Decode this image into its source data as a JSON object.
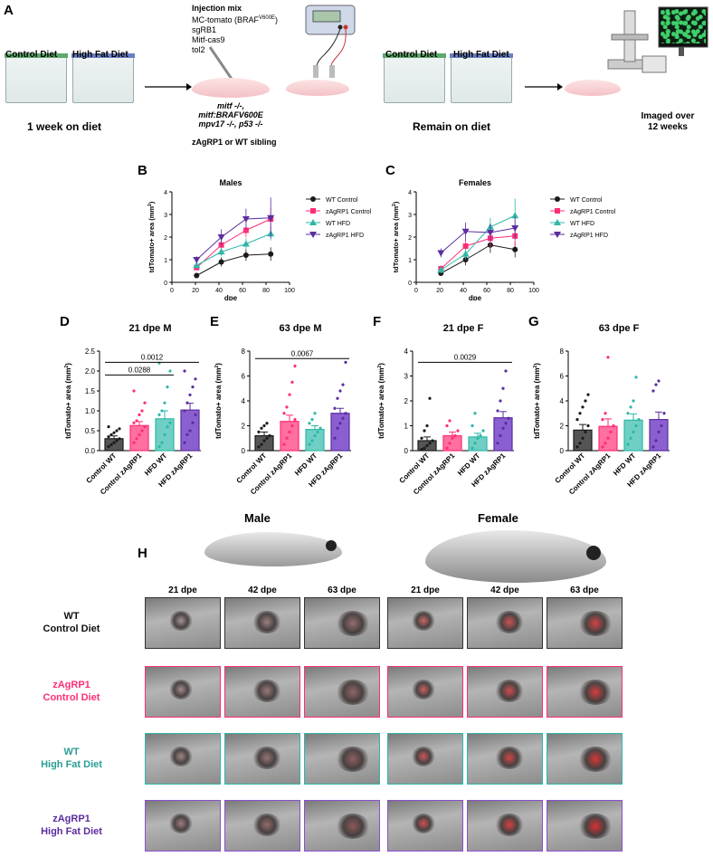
{
  "panel_labels": {
    "A": "A",
    "B": "B",
    "C": "C",
    "D": "D",
    "E": "E",
    "F": "F",
    "G": "G",
    "H": "H"
  },
  "panelA": {
    "control_diet": "Control Diet",
    "high_fat_diet": "High Fat Diet",
    "week_on_diet": "1 week on diet",
    "injection_title": "Injection mix",
    "injection_items": [
      "MC-tomato (BRAF",
      "sgRB1",
      "Mitf-cas9",
      "tol2"
    ],
    "braf_superscript": "V600E",
    "braf_close": ")",
    "genotype_lines": [
      "mitf -/-,",
      "mitf:BRAFV600E",
      "mpv17 -/-, p53 -/-"
    ],
    "sibling_text": "zAgRP1 or WT sibling",
    "remain_on_diet": "Remain on diet",
    "imaged_text": [
      "Imaged over",
      "12 weeks"
    ]
  },
  "colors": {
    "wt_control": "#1a1a1a",
    "zagrp1_control": "#ff2d78",
    "wt_hfd": "#2fb7a8",
    "zagrp1_hfd": "#5b2d9e"
  },
  "chart_data": [
    {
      "id": "B",
      "type": "line",
      "title": "Males",
      "xlabel": "dpe",
      "ylabel": "tdTomato+ area (mm",
      "ylabel_sup": "2",
      "ylabel_close": ")",
      "xlim": [
        0,
        100
      ],
      "ylim": [
        0,
        4
      ],
      "xticks": [
        0,
        20,
        40,
        60,
        80,
        100
      ],
      "yticks": [
        0,
        1,
        2,
        3,
        4
      ],
      "x": [
        21,
        42,
        63,
        84
      ],
      "series": [
        {
          "name": "WT Control",
          "color": "#1a1a1a",
          "marker": "circle",
          "values": [
            0.3,
            0.9,
            1.2,
            1.25
          ],
          "err": [
            0.05,
            0.2,
            0.25,
            0.3
          ]
        },
        {
          "name": "zAgRP1 Control",
          "color": "#ff2d78",
          "marker": "square",
          "values": [
            0.65,
            1.65,
            2.3,
            2.8
          ],
          "err": [
            0.1,
            0.25,
            0.3,
            0.5
          ]
        },
        {
          "name": "WT HFD",
          "color": "#2fb7a8",
          "marker": "triangle",
          "values": [
            0.75,
            1.35,
            1.7,
            2.15
          ],
          "err": [
            0.15,
            0.2,
            0.25,
            0.3
          ]
        },
        {
          "name": "zAgRP1 HFD",
          "color": "#5b2d9e",
          "marker": "triangle-down",
          "values": [
            1.0,
            2.0,
            2.8,
            2.85
          ],
          "err": [
            0.15,
            0.35,
            0.45,
            0.9
          ]
        }
      ]
    },
    {
      "id": "C",
      "type": "line",
      "title": "Females",
      "xlabel": "dpe",
      "ylabel": "tdTomato+ area (mm",
      "ylabel_sup": "2",
      "ylabel_close": ")",
      "xlim": [
        0,
        100
      ],
      "ylim": [
        0,
        4
      ],
      "xticks": [
        0,
        20,
        40,
        60,
        80,
        100
      ],
      "yticks": [
        0,
        1,
        2,
        3,
        4
      ],
      "x": [
        21,
        42,
        63,
        84
      ],
      "series": [
        {
          "name": "WT Control",
          "color": "#1a1a1a",
          "marker": "circle",
          "values": [
            0.4,
            1.0,
            1.65,
            1.45
          ],
          "err": [
            0.1,
            0.25,
            0.35,
            0.35
          ]
        },
        {
          "name": "zAgRP1 Control",
          "color": "#ff2d78",
          "marker": "square",
          "values": [
            0.6,
            1.6,
            1.95,
            2.05
          ],
          "err": [
            0.15,
            0.3,
            0.4,
            0.45
          ]
        },
        {
          "name": "WT HFD",
          "color": "#2fb7a8",
          "marker": "triangle",
          "values": [
            0.55,
            1.25,
            2.45,
            2.95
          ],
          "err": [
            0.15,
            0.25,
            0.4,
            0.75
          ]
        },
        {
          "name": "zAgRP1 HFD",
          "color": "#5b2d9e",
          "marker": "triangle-down",
          "values": [
            1.3,
            2.25,
            2.2,
            2.4
          ],
          "err": [
            0.2,
            0.4,
            0.4,
            0.5
          ]
        }
      ]
    },
    {
      "id": "D",
      "type": "bar",
      "title": "21 dpe M",
      "ylabel": "tdTomato+ area (mm",
      "ylabel_sup": "2",
      "ylabel_close": ")",
      "categories": [
        "Control WT",
        "Control zAgRP1",
        "HFD WT",
        "HFD zAgRP1"
      ],
      "values": [
        0.3,
        0.63,
        0.8,
        1.02
      ],
      "err": [
        0.07,
        0.1,
        0.2,
        0.17
      ],
      "ylim": [
        0,
        2.5
      ],
      "yticks": [
        0.0,
        0.5,
        1.0,
        1.5,
        2.0,
        2.5
      ],
      "ytick_labels": [
        "0.0",
        "0.5",
        "1.0",
        "1.5",
        "2.0",
        "2.5"
      ],
      "points": [
        [
          0.1,
          0.15,
          0.2,
          0.25,
          0.3,
          0.35,
          0.4,
          0.45,
          0.5,
          0.55,
          0.6
        ],
        [
          0.2,
          0.3,
          0.4,
          0.5,
          0.6,
          0.7,
          0.75,
          0.9,
          1.0,
          1.2,
          1.5
        ],
        [
          0.1,
          0.2,
          0.4,
          0.6,
          0.7,
          0.9,
          1.0,
          1.2,
          1.6,
          2.0,
          2.2
        ],
        [
          0.2,
          0.4,
          0.5,
          0.7,
          0.9,
          1.0,
          1.2,
          1.4,
          1.6,
          1.8,
          2.0
        ]
      ],
      "comparisons": [
        {
          "from": 0,
          "to": 3,
          "label": "0.0012",
          "y": 2.22
        },
        {
          "from": 0,
          "to": 2,
          "label": "0.0288",
          "y": 1.9
        }
      ]
    },
    {
      "id": "E",
      "type": "bar",
      "title": "63 dpe M",
      "ylabel": "tdTomato+ area (mm",
      "ylabel_sup": "2",
      "ylabel_close": ")",
      "categories": [
        "Control WT",
        "Control zAgRP1",
        "HFD WT",
        "HFD zAgRP1"
      ],
      "values": [
        1.2,
        2.35,
        1.7,
        3.0
      ],
      "err": [
        0.3,
        0.5,
        0.3,
        0.4
      ],
      "ylim": [
        0,
        8
      ],
      "yticks": [
        0,
        2,
        4,
        6,
        8
      ],
      "ytick_labels": [
        "0",
        "2",
        "4",
        "6",
        "8"
      ],
      "points": [
        [
          0.3,
          0.5,
          0.8,
          1.0,
          1.2,
          1.5,
          1.8,
          2.0,
          2.2
        ],
        [
          0.5,
          1.0,
          1.5,
          2.0,
          2.5,
          3.0,
          3.5,
          4.5,
          5.5,
          6.8
        ],
        [
          0.5,
          0.8,
          1.2,
          1.5,
          1.8,
          2.2,
          2.5,
          3.0
        ],
        [
          1.0,
          1.8,
          2.2,
          2.6,
          3.0,
          3.4,
          4.2,
          4.8,
          5.3,
          7.1
        ]
      ],
      "comparisons": [
        {
          "from": 0,
          "to": 3,
          "label": "0.0067",
          "y": 7.4
        }
      ]
    },
    {
      "id": "F",
      "type": "bar",
      "title": "21 dpe F",
      "ylabel": "tdTomato+ area (mm",
      "ylabel_sup": "2",
      "ylabel_close": ")",
      "categories": [
        "Control WT",
        "Control zAgRP1",
        "HFD WT",
        "HFD zAgRP1"
      ],
      "values": [
        0.4,
        0.6,
        0.55,
        1.32
      ],
      "err": [
        0.15,
        0.15,
        0.15,
        0.25
      ],
      "ylim": [
        0,
        4
      ],
      "yticks": [
        0,
        1,
        2,
        3,
        4
      ],
      "ytick_labels": [
        "0",
        "1",
        "2",
        "3",
        "4"
      ],
      "points": [
        [
          0.05,
          0.1,
          0.2,
          0.3,
          0.4,
          0.5,
          0.8,
          1.0,
          2.1
        ],
        [
          0.1,
          0.3,
          0.5,
          0.6,
          0.8,
          1.0,
          1.2
        ],
        [
          0.1,
          0.3,
          0.5,
          0.6,
          0.8,
          1.0,
          1.5
        ],
        [
          0.3,
          0.6,
          0.9,
          1.1,
          1.3,
          1.6,
          2.0,
          2.5,
          3.2
        ]
      ],
      "comparisons": [
        {
          "from": 0,
          "to": 3,
          "label": "0.0029",
          "y": 3.55
        }
      ]
    },
    {
      "id": "G",
      "type": "bar",
      "title": "63 dpe F",
      "ylabel": "tdTomato+ area (mm",
      "ylabel_sup": "2",
      "ylabel_close": ")",
      "categories": [
        "Control WT",
        "Control zAgRP1",
        "HFD WT",
        "HFD zAgRP1"
      ],
      "values": [
        1.65,
        1.95,
        2.45,
        2.5
      ],
      "err": [
        0.45,
        0.6,
        0.5,
        0.6
      ],
      "ylim": [
        0,
        8
      ],
      "yticks": [
        0,
        2,
        4,
        6,
        8
      ],
      "ytick_labels": [
        "0",
        "2",
        "4",
        "6",
        "8"
      ],
      "points": [
        [
          0.3,
          0.6,
          1.0,
          1.5,
          2.0,
          2.5,
          3.0,
          3.5,
          4.0,
          4.5
        ],
        [
          0.3,
          0.6,
          1.0,
          1.5,
          2.0,
          2.5,
          3.0,
          7.5
        ],
        [
          0.5,
          1.0,
          1.5,
          2.0,
          2.5,
          3.0,
          3.5,
          4.0,
          5.9
        ],
        [
          0.3,
          0.8,
          1.5,
          2.0,
          3.0,
          4.8,
          5.3,
          5.6
        ]
      ],
      "comparisons": []
    }
  ],
  "panelH": {
    "male": "Male",
    "female": "Female",
    "timepoints": [
      "21 dpe",
      "42 dpe",
      "63 dpe"
    ],
    "rows": [
      {
        "line1": "WT",
        "line2": "Control Diet",
        "color": "#111111",
        "border": "#333333"
      },
      {
        "line1": "zAgRP1",
        "line2": "Control Diet",
        "color": "#ff2d78",
        "border": "#ff2d78"
      },
      {
        "line1": "WT",
        "line2": "High Fat Diet",
        "color": "#2a9d93",
        "border": "#2fb7a8"
      },
      {
        "line1": "zAgRP1",
        "line2": "High Fat Diet",
        "color": "#5b2d9e",
        "border": "#8a4fd0"
      }
    ]
  }
}
